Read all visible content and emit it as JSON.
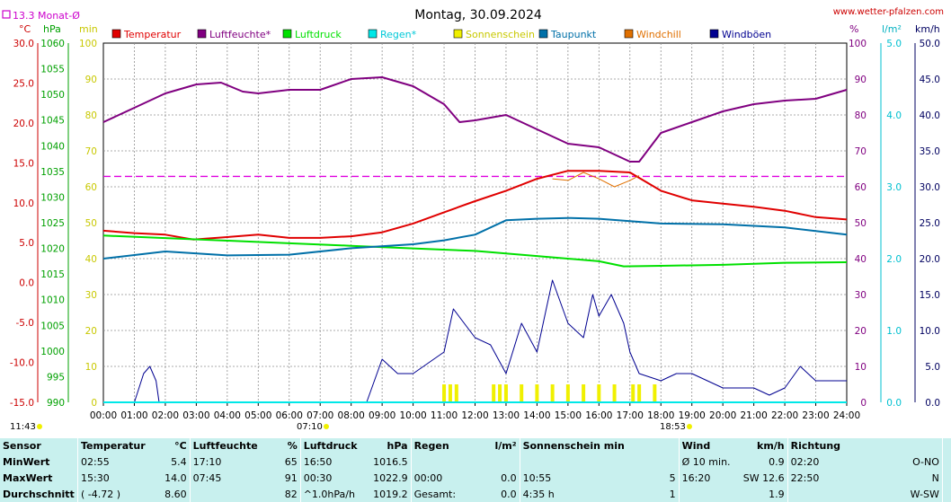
{
  "title": "Montag, 30.09.2024",
  "site": "www.wetter-pfalzen.com",
  "month_avg_label": "13.3 Monat-Ø",
  "unit_labels": {
    "temp": "°C",
    "pressure": "hPa",
    "sun_min": "min",
    "percent": "%",
    "rain": "l/m²",
    "wind": "km/h"
  },
  "legend": [
    {
      "name": "Temperatur",
      "color": "#e00000"
    },
    {
      "name": "Luftfeuchte*",
      "color": "#800080"
    },
    {
      "name": "Luftdruck",
      "color": "#00e000"
    },
    {
      "name": "Regen*",
      "color": "#00e8e8"
    },
    {
      "name": "Sonnenschein",
      "color": "#f0f000"
    },
    {
      "name": "Taupunkt",
      "color": "#0070a8"
    },
    {
      "name": "Windchill",
      "color": "#e07000"
    },
    {
      "name": "Windböen",
      "color": "#000090"
    }
  ],
  "axes": {
    "temp_ticks": [
      "30.0",
      "25.0",
      "20.0",
      "15.0",
      "10.0",
      "5.0",
      "0.0",
      "-5.0",
      "-10.0",
      "-15.0"
    ],
    "pressure_ticks": [
      "1060",
      "1055",
      "1050",
      "1045",
      "1040",
      "1035",
      "1030",
      "1025",
      "1020",
      "1015",
      "1010",
      "1005",
      "1000",
      "995",
      "990"
    ],
    "sun_ticks": [
      "100",
      "90",
      "80",
      "70",
      "60",
      "50",
      "40",
      "30",
      "20",
      "10",
      "0"
    ],
    "pct_ticks": [
      "100",
      "90",
      "80",
      "70",
      "60",
      "50",
      "40",
      "30",
      "20",
      "10",
      "0"
    ],
    "rain_ticks": [
      "5.0",
      "4.0",
      "3.0",
      "2.0",
      "1.0",
      "0.0"
    ],
    "wind_ticks": [
      "50.0",
      "45.0",
      "40.0",
      "35.0",
      "30.0",
      "25.0",
      "20.0",
      "15.0",
      "10.0",
      "5.0",
      "0.0"
    ],
    "time_ticks": [
      "00:00",
      "01:00",
      "02:00",
      "03:00",
      "04:00",
      "05:00",
      "06:00",
      "07:00",
      "08:00",
      "09:00",
      "10:00",
      "11:00",
      "12:00",
      "13:00",
      "14:00",
      "15:00",
      "16:00",
      "17:00",
      "18:00",
      "19:00",
      "20:00",
      "21:00",
      "22:00",
      "23:00",
      "24:00"
    ]
  },
  "bottom_marks": {
    "moonrise": "11:43",
    "sunrise": "07:10",
    "sunset": "18:53"
  },
  "chart_data": {
    "type": "line",
    "title": "Montag, 30.09.2024",
    "x_unit": "hour",
    "xlim": [
      0,
      24
    ],
    "month_avg_temp": 13.3,
    "axis_ranges": {
      "temperature": [
        -15,
        30
      ],
      "pressure": [
        990,
        1060
      ],
      "sunshine_min": [
        0,
        100
      ],
      "humidity_pct": [
        0,
        100
      ],
      "rain": [
        0,
        5
      ],
      "wind_kmh": [
        0,
        50
      ]
    },
    "grid": true,
    "series": [
      {
        "name": "Temperatur",
        "axis": "temperature",
        "color": "#e00000",
        "points": [
          [
            0,
            6.5
          ],
          [
            1,
            6.2
          ],
          [
            2,
            6.0
          ],
          [
            2.9,
            5.4
          ],
          [
            4,
            5.7
          ],
          [
            5,
            6.0
          ],
          [
            6,
            5.6
          ],
          [
            7,
            5.6
          ],
          [
            8,
            5.8
          ],
          [
            9,
            6.3
          ],
          [
            10,
            7.4
          ],
          [
            11,
            8.8
          ],
          [
            12,
            10.2
          ],
          [
            13,
            11.5
          ],
          [
            14,
            13.0
          ],
          [
            15,
            14.0
          ],
          [
            16,
            14.0
          ],
          [
            17,
            13.8
          ],
          [
            18,
            11.5
          ],
          [
            19,
            10.3
          ],
          [
            20,
            9.9
          ],
          [
            21,
            9.5
          ],
          [
            22,
            9.0
          ],
          [
            23,
            8.2
          ],
          [
            24,
            7.9
          ]
        ]
      },
      {
        "name": "Luftfeuchte*",
        "axis": "humidity_pct",
        "color": "#800080",
        "points": [
          [
            0,
            78
          ],
          [
            1,
            82
          ],
          [
            2,
            86
          ],
          [
            3,
            88.5
          ],
          [
            3.8,
            89
          ],
          [
            4.5,
            86.5
          ],
          [
            5,
            86
          ],
          [
            6,
            87
          ],
          [
            7,
            87
          ],
          [
            8,
            90
          ],
          [
            9,
            90.5
          ],
          [
            10,
            88
          ],
          [
            11,
            83
          ],
          [
            11.5,
            78
          ],
          [
            12,
            78.5
          ],
          [
            13,
            80
          ],
          [
            14,
            76
          ],
          [
            15,
            72
          ],
          [
            16,
            71
          ],
          [
            17,
            67
          ],
          [
            17.3,
            67
          ],
          [
            18,
            75
          ],
          [
            19,
            78
          ],
          [
            20,
            81
          ],
          [
            21,
            83
          ],
          [
            22,
            84
          ],
          [
            23,
            84.5
          ],
          [
            24,
            87
          ]
        ]
      },
      {
        "name": "Luftdruck",
        "axis": "pressure",
        "color": "#00e000",
        "points": [
          [
            0,
            1022.5
          ],
          [
            2,
            1022.0
          ],
          [
            4,
            1021.5
          ],
          [
            6,
            1021.0
          ],
          [
            8,
            1020.5
          ],
          [
            10,
            1020.0
          ],
          [
            12,
            1019.5
          ],
          [
            14,
            1018.5
          ],
          [
            16,
            1017.5
          ],
          [
            16.8,
            1016.5
          ],
          [
            18,
            1016.6
          ],
          [
            20,
            1016.8
          ],
          [
            22,
            1017.2
          ],
          [
            24,
            1017.3
          ]
        ]
      },
      {
        "name": "Taupunkt",
        "axis": "temperature",
        "color": "#0070a8",
        "points": [
          [
            0,
            3.0
          ],
          [
            2,
            3.9
          ],
          [
            4,
            3.4
          ],
          [
            6,
            3.5
          ],
          [
            8,
            4.3
          ],
          [
            10,
            4.8
          ],
          [
            11,
            5.3
          ],
          [
            12,
            6.0
          ],
          [
            13,
            7.8
          ],
          [
            14,
            8.0
          ],
          [
            15,
            8.1
          ],
          [
            16,
            8.0
          ],
          [
            17,
            7.7
          ],
          [
            18,
            7.4
          ],
          [
            20,
            7.3
          ],
          [
            22,
            6.9
          ],
          [
            24,
            6.0
          ]
        ]
      },
      {
        "name": "Windchill",
        "axis": "temperature",
        "color": "#e07000",
        "points": [
          [
            14.5,
            13.0
          ],
          [
            15,
            12.8
          ],
          [
            15.5,
            13.8
          ],
          [
            16,
            13.0
          ],
          [
            16.5,
            12.0
          ],
          [
            17,
            12.8
          ],
          [
            17.3,
            13.4
          ]
        ]
      },
      {
        "name": "Windböen",
        "axis": "wind_kmh",
        "color": "#000090",
        "points": [
          [
            0,
            0
          ],
          [
            1,
            0
          ],
          [
            1.3,
            4
          ],
          [
            1.5,
            5
          ],
          [
            1.7,
            3
          ],
          [
            1.8,
            0
          ],
          [
            8.5,
            0
          ],
          [
            9,
            6
          ],
          [
            9.5,
            4
          ],
          [
            10,
            4
          ],
          [
            11,
            7
          ],
          [
            11.3,
            13
          ],
          [
            12,
            9
          ],
          [
            12.5,
            8
          ],
          [
            13,
            4
          ],
          [
            13.5,
            11
          ],
          [
            14,
            7
          ],
          [
            14.5,
            17
          ],
          [
            15,
            11
          ],
          [
            15.5,
            9
          ],
          [
            15.8,
            15
          ],
          [
            16,
            12
          ],
          [
            16.4,
            15
          ],
          [
            16.8,
            11
          ],
          [
            17,
            7
          ],
          [
            17.3,
            4
          ],
          [
            18,
            3
          ],
          [
            18.5,
            4
          ],
          [
            19,
            4
          ],
          [
            20,
            2
          ],
          [
            21,
            2
          ],
          [
            21.5,
            1
          ],
          [
            22,
            2
          ],
          [
            22.5,
            5
          ],
          [
            23,
            3
          ],
          [
            24,
            3
          ]
        ]
      },
      {
        "name": "Sonnenschein",
        "axis": "sunshine_min",
        "color": "#f0f000",
        "points": [
          [
            11.0,
            5
          ],
          [
            11.2,
            5
          ],
          [
            11.4,
            5
          ],
          [
            12.6,
            5
          ],
          [
            12.8,
            5
          ],
          [
            13,
            5
          ],
          [
            13.5,
            5
          ],
          [
            14,
            5
          ],
          [
            14.5,
            5
          ],
          [
            15,
            5
          ],
          [
            15.5,
            5
          ],
          [
            16,
            5
          ],
          [
            16.5,
            5
          ],
          [
            17.1,
            5
          ],
          [
            17.3,
            5
          ],
          [
            17.8,
            5
          ]
        ]
      },
      {
        "name": "Regen*",
        "axis": "rain",
        "color": "#00e8e8",
        "points": [
          [
            0,
            0
          ],
          [
            24,
            0
          ]
        ]
      }
    ]
  },
  "summary": {
    "headers": [
      "Sensor",
      "Temperatur",
      "°C",
      "Luftfeuchte",
      "%",
      "Luftdruck",
      "hPa",
      "Regen",
      "l/m²",
      "Sonnenschein min",
      "Wind",
      "km/h",
      "Richtung"
    ],
    "rows": [
      {
        "label": "MinWert",
        "cells": [
          "02:55",
          "5.4",
          "17:10",
          "65",
          "16:50",
          "1016.5",
          "",
          "",
          "",
          "",
          "Ø 10 min.",
          "0.9",
          "02:20",
          "O-NO"
        ]
      },
      {
        "label": "MaxWert",
        "cells": [
          "15:30",
          "14.0",
          "07:45",
          "91",
          "00:30",
          "1022.9",
          "00:00",
          "0.0",
          "10:55",
          "5",
          "16:20",
          "SW 12.6",
          "22:50",
          "N"
        ]
      },
      {
        "label": "Durchschnitt",
        "cells": [
          "( -4.72 )",
          "8.60",
          "",
          "82",
          "^1.0hPa/h",
          "1019.2",
          "Gesamt:",
          "0.0",
          "4:35 h",
          "1",
          "",
          "1.9",
          "",
          "W-SW"
        ]
      }
    ]
  }
}
